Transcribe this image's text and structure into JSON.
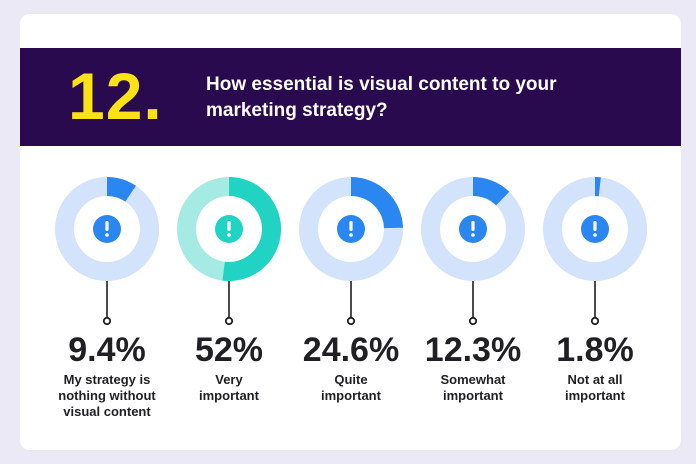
{
  "question": {
    "number": "12.",
    "text": "How essential is visual content to your marketing strategy?"
  },
  "colors": {
    "background": "#ece9f6",
    "banner": "#2a0a4f",
    "number": "#fbe216",
    "ring_track_default": "#d2e3fb",
    "ring_fill_default": "#2a86f0",
    "ring_track_highlight": "#a6ebe3",
    "ring_fill_highlight": "#21d3c2",
    "icon_default": "#2a86f0",
    "icon_highlight": "#21d3c2"
  },
  "chart_data": {
    "type": "pie",
    "style": "donut",
    "title": "How essential is visual content to your marketing strategy?",
    "categories": [
      "My strategy is nothing without visual content",
      "Very important",
      "Quite important",
      "Somewhat important",
      "Not at all important"
    ],
    "values": [
      9.4,
      52,
      24.6,
      12.3,
      1.8
    ],
    "value_labels": [
      "9.4%",
      "52%",
      "24.6%",
      "12.3%",
      "1.8%"
    ],
    "label_lines": [
      [
        "My strategy is",
        "nothing without",
        "visual content"
      ],
      [
        "Very",
        "important"
      ],
      [
        "Quite",
        "important"
      ],
      [
        "Somewhat",
        "important"
      ],
      [
        "Not at all",
        "important"
      ]
    ],
    "highlight": [
      false,
      true,
      false,
      false,
      false
    ],
    "icon": "exclamation-icon"
  }
}
